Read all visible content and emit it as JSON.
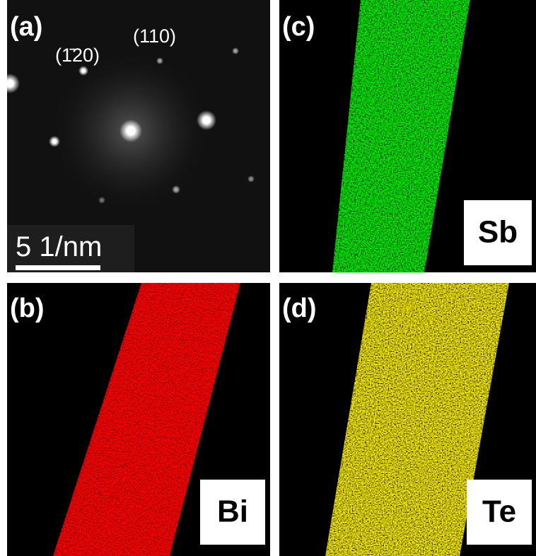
{
  "panels": [
    {
      "label": "(a)",
      "annotations": [
        "(1̄20)",
        "(110)"
      ],
      "scale_bar": "5 1/nm"
    },
    {
      "label": "(b)",
      "element": "Bi"
    },
    {
      "label": "(c)",
      "element": "Sb"
    },
    {
      "label": "(d)",
      "element": "Te"
    }
  ]
}
